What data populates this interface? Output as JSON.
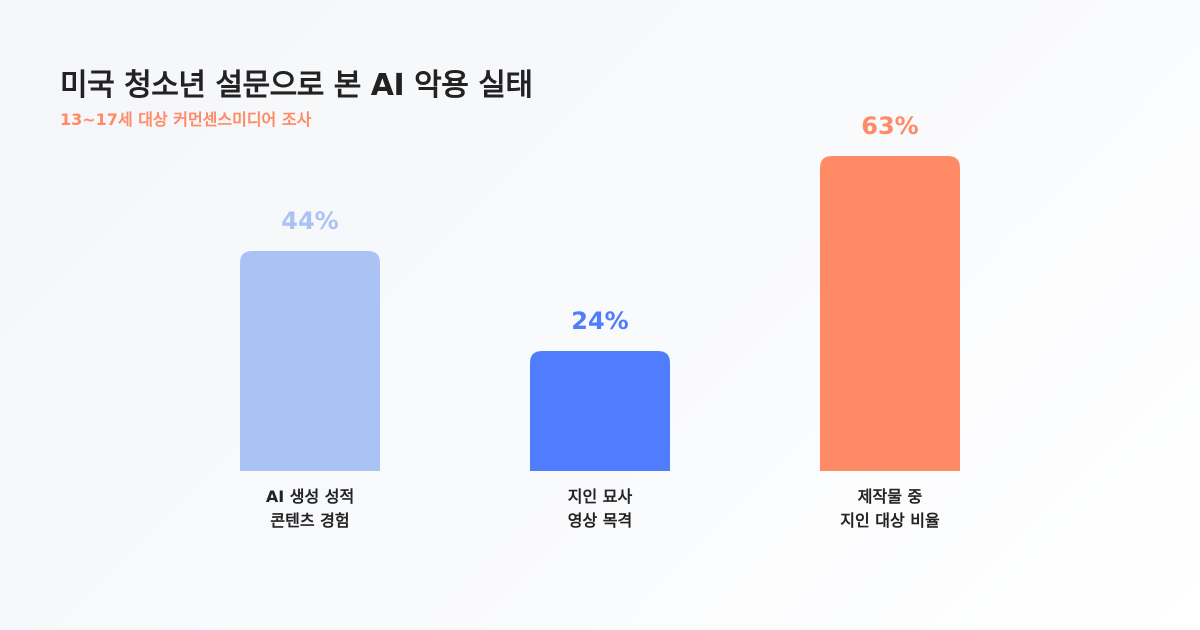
{
  "header": {
    "title": "미국 청소년 설문으로 본 AI 악용 실태",
    "subtitle": "13~17세 대상 커먼센스미디어 조사"
  },
  "chart_data": {
    "type": "bar",
    "title": "미국 청소년 설문으로 본 AI 악용 실태",
    "subtitle": "13~17세 대상 커먼센스미디어 조사",
    "categories": [
      [
        "AI 생성 성적",
        "콘텐츠 경험"
      ],
      [
        "지인 묘사",
        "영상 목격"
      ],
      [
        "제작물 중",
        "지인 대상 비율"
      ]
    ],
    "values": [
      44,
      24,
      63
    ],
    "value_labels": [
      "44%",
      "24%",
      "63%"
    ],
    "colors": [
      "#abc2f5",
      "#507cfe",
      "#ff8b66"
    ],
    "unit": "%",
    "xlabel": "",
    "ylabel": "",
    "grid": false,
    "legend": false
  }
}
